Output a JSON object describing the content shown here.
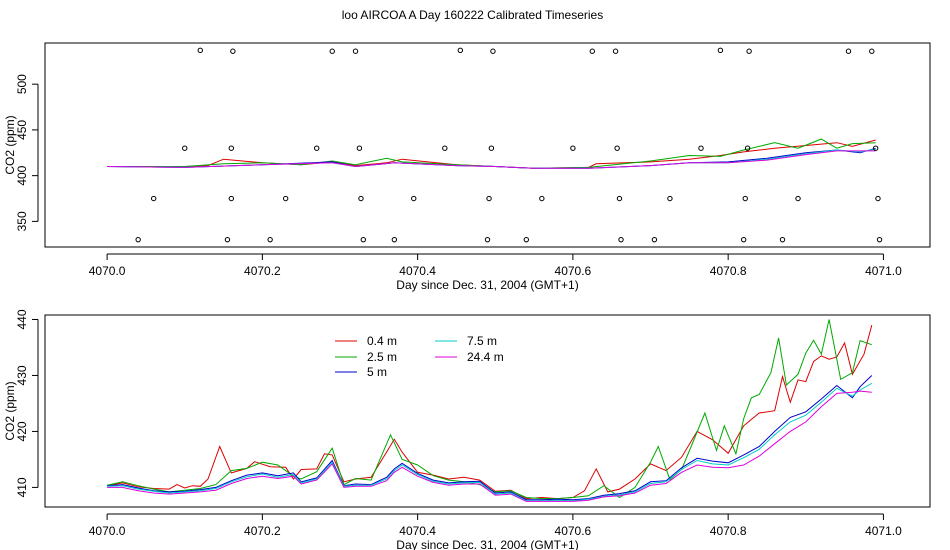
{
  "title": "loo AIRCOA A  Day 160222  Calibrated Timeseries",
  "colors": {
    "0.4 m": "#dd0000",
    "2.5 m": "#00aa00",
    "5 m": "#0000cc",
    "7.5 m": "#00cccc",
    "24.4 m": "#dd00dd"
  },
  "chart_data": [
    {
      "type": "line",
      "xlabel": "Day since Dec. 31, 2004 (GMT+1)",
      "ylabel": "CO2 (ppm)",
      "xlim": [
        4069.92,
        4071.06
      ],
      "ylim": [
        322,
        545
      ],
      "xticks": [
        4070.0,
        4070.2,
        4070.4,
        4070.6,
        4070.8,
        4071.0
      ],
      "xtick_labels": [
        "4070.0",
        "4070.2",
        "4070.4",
        "4070.6",
        "4070.8",
        "4071.0"
      ],
      "yticks": [
        350,
        400,
        450,
        500
      ],
      "ytick_labels": [
        "350",
        "400",
        "450",
        "500"
      ],
      "series": [
        {
          "name": "0.4 m",
          "x": [
            4070.0,
            4070.05,
            4070.1,
            4070.13,
            4070.15,
            4070.2,
            4070.25,
            4070.29,
            4070.32,
            4070.36,
            4070.38,
            4070.45,
            4070.5,
            4070.55,
            4070.62,
            4070.63,
            4070.7,
            4070.75,
            4070.79,
            4070.82,
            4070.86,
            4070.9,
            4070.94,
            4070.96,
            4070.99
          ],
          "y": [
            410,
            410,
            410,
            411,
            418,
            414,
            412,
            415,
            411,
            414,
            418,
            412,
            410,
            408,
            409,
            413,
            415,
            418,
            422,
            426,
            430,
            433,
            436,
            432,
            439
          ]
        },
        {
          "name": "2.5 m",
          "x": [
            4070.0,
            4070.05,
            4070.1,
            4070.15,
            4070.2,
            4070.25,
            4070.29,
            4070.32,
            4070.36,
            4070.38,
            4070.45,
            4070.5,
            4070.55,
            4070.62,
            4070.7,
            4070.75,
            4070.79,
            4070.82,
            4070.86,
            4070.89,
            4070.92,
            4070.94,
            4070.96,
            4070.99
          ],
          "y": [
            410,
            410,
            410,
            413,
            414,
            412,
            416,
            412,
            419,
            415,
            412,
            410,
            408,
            409,
            416,
            422,
            421,
            428,
            436,
            430,
            440,
            430,
            435,
            436
          ]
        },
        {
          "name": "5 m",
          "x": [
            4070.0,
            4070.1,
            4070.2,
            4070.29,
            4070.32,
            4070.37,
            4070.45,
            4070.5,
            4070.55,
            4070.62,
            4070.7,
            4070.75,
            4070.8,
            4070.85,
            4070.9,
            4070.94,
            4070.97,
            4070.99
          ],
          "y": [
            410,
            409,
            412,
            415,
            410,
            414,
            411,
            410,
            408,
            408,
            411,
            414,
            415,
            419,
            425,
            428,
            425,
            430
          ]
        },
        {
          "name": "7.5 m",
          "x": [
            4070.0,
            4070.1,
            4070.2,
            4070.29,
            4070.32,
            4070.37,
            4070.45,
            4070.5,
            4070.55,
            4070.62,
            4070.7,
            4070.75,
            4070.8,
            4070.85,
            4070.9,
            4070.94,
            4070.97,
            4070.99
          ],
          "y": [
            410,
            409,
            412,
            414,
            410,
            414,
            411,
            410,
            408,
            408,
            411,
            414,
            414,
            418,
            424,
            428,
            426,
            429
          ]
        },
        {
          "name": "24.4 m",
          "x": [
            4070.0,
            4070.1,
            4070.2,
            4070.29,
            4070.32,
            4070.37,
            4070.45,
            4070.5,
            4070.55,
            4070.62,
            4070.7,
            4070.75,
            4070.8,
            4070.85,
            4070.9,
            4070.94,
            4070.97,
            4070.99
          ],
          "y": [
            410,
            409,
            412,
            414,
            410,
            414,
            411,
            410,
            408,
            408,
            411,
            414,
            414,
            417,
            423,
            427,
            427,
            427
          ]
        }
      ],
      "markers": {
        "x": [
          4070.04,
          4070.06,
          4070.1,
          4070.12,
          4070.155,
          4070.16,
          4070.16,
          4070.162,
          4070.21,
          4070.23,
          4070.27,
          4070.29,
          4070.32,
          4070.325,
          4070.327,
          4070.33,
          4070.37,
          4070.395,
          4070.435,
          4070.455,
          4070.49,
          4070.492,
          4070.495,
          4070.497,
          4070.54,
          4070.56,
          4070.6,
          4070.625,
          4070.655,
          4070.657,
          4070.66,
          4070.662,
          4070.705,
          4070.725,
          4070.765,
          4070.79,
          4070.82,
          4070.822,
          4070.825,
          4070.827,
          4070.87,
          4070.89,
          4070.955,
          4070.985,
          4070.99,
          4070.993,
          4070.995
        ],
        "y": [
          330,
          375,
          430,
          537,
          330,
          375,
          430,
          536,
          330,
          375,
          430,
          536,
          536,
          430,
          375,
          330,
          330,
          375,
          430,
          537,
          330,
          375,
          430,
          536,
          330,
          375,
          430,
          536,
          536,
          430,
          375,
          330,
          330,
          375,
          430,
          537,
          330,
          375,
          430,
          536,
          330,
          375,
          536,
          536,
          430,
          375,
          330
        ]
      }
    },
    {
      "type": "line",
      "xlabel": "Day since Dec. 31, 2004 (GMT+1)",
      "ylabel": "CO2 (ppm)",
      "xlim": [
        4069.92,
        4071.06
      ],
      "ylim": [
        406.5,
        440.8
      ],
      "xticks": [
        4070.0,
        4070.2,
        4070.4,
        4070.6,
        4070.8,
        4071.0
      ],
      "xtick_labels": [
        "4070.0",
        "4070.2",
        "4070.4",
        "4070.6",
        "4070.8",
        "4071.0"
      ],
      "yticks": [
        410,
        420,
        430,
        440
      ],
      "ytick_labels": [
        "410",
        "420",
        "430",
        "440"
      ],
      "legend": {
        "placement": "top-left",
        "entries": [
          "0.4 m",
          "2.5 m",
          "5 m",
          "7.5 m",
          "24.4 m"
        ]
      },
      "series": [
        {
          "name": "0.4 m",
          "x": [
            4070.0,
            4070.02,
            4070.04,
            4070.06,
            4070.08,
            4070.09,
            4070.1,
            4070.11,
            4070.12,
            4070.13,
            4070.145,
            4070.16,
            4070.18,
            4070.19,
            4070.21,
            4070.23,
            4070.24,
            4070.25,
            4070.27,
            4070.28,
            4070.29,
            4070.305,
            4070.32,
            4070.34,
            4070.36,
            4070.37,
            4070.38,
            4070.4,
            4070.42,
            4070.44,
            4070.46,
            4070.48,
            4070.5,
            4070.52,
            4070.54,
            4070.56,
            4070.58,
            4070.6,
            4070.615,
            4070.63,
            4070.645,
            4070.66,
            4070.68,
            4070.7,
            4070.72,
            4070.74,
            4070.76,
            4070.78,
            4070.8,
            4070.82,
            4070.84,
            4070.86,
            4070.87,
            4070.88,
            4070.89,
            4070.9,
            4070.91,
            4070.92,
            4070.93,
            4070.94,
            4070.95,
            4070.96,
            4070.975,
            4070.985
          ],
          "y": [
            410.3,
            410.8,
            410.1,
            409.8,
            409.7,
            410.5,
            409.9,
            410.3,
            410.2,
            411.5,
            417.3,
            412.6,
            413.4,
            414.6,
            413.7,
            413.6,
            411.5,
            413.2,
            413.3,
            416.0,
            415.8,
            411.0,
            411.5,
            411.8,
            416.3,
            418.6,
            416.3,
            412.7,
            412.2,
            411.5,
            411.8,
            411.3,
            409.3,
            409.5,
            408.0,
            408.2,
            408.0,
            408.2,
            409.4,
            413.3,
            409.2,
            409.7,
            411.5,
            414.2,
            413.0,
            415.4,
            420.0,
            418.5,
            416.1,
            421.0,
            423.3,
            423.7,
            429.8,
            425.2,
            429.2,
            428.9,
            432.5,
            433.5,
            432.9,
            433.3,
            435.8,
            430.2,
            433.8,
            439.0
          ]
        },
        {
          "name": "2.5 m",
          "x": [
            4070.0,
            4070.02,
            4070.04,
            4070.06,
            4070.08,
            4070.1,
            4070.12,
            4070.14,
            4070.16,
            4070.18,
            4070.2,
            4070.22,
            4070.24,
            4070.25,
            4070.27,
            4070.29,
            4070.305,
            4070.32,
            4070.34,
            4070.365,
            4070.38,
            4070.4,
            4070.42,
            4070.44,
            4070.46,
            4070.48,
            4070.5,
            4070.52,
            4070.54,
            4070.56,
            4070.58,
            4070.6,
            4070.62,
            4070.64,
            4070.66,
            4070.68,
            4070.7,
            4070.71,
            4070.725,
            4070.74,
            4070.755,
            4070.77,
            4070.785,
            4070.795,
            4070.81,
            4070.82,
            4070.83,
            4070.84,
            4070.855,
            4070.865,
            4070.875,
            4070.89,
            4070.9,
            4070.91,
            4070.92,
            4070.93,
            4070.945,
            4070.96,
            4070.97,
            4070.985
          ],
          "y": [
            410.4,
            411.0,
            410.3,
            409.7,
            409.2,
            409.5,
            409.8,
            410.5,
            413.0,
            413.4,
            414.5,
            414.0,
            412.0,
            411.5,
            412.8,
            417.0,
            410.5,
            411.6,
            411.3,
            419.4,
            415.0,
            414.0,
            412.1,
            411.3,
            411.0,
            410.5,
            409.2,
            409.4,
            408.2,
            408.0,
            408.0,
            408.2,
            408.5,
            410.3,
            408.2,
            410.0,
            414.5,
            417.3,
            411.4,
            413.2,
            418.2,
            423.3,
            416.6,
            421.0,
            416.0,
            422.3,
            426.0,
            426.6,
            430.5,
            436.7,
            428.3,
            430.2,
            434.0,
            436.3,
            433.8,
            440.0,
            429.3,
            430.5,
            436.2,
            435.5
          ]
        },
        {
          "name": "5 m",
          "x": [
            4070.0,
            4070.02,
            4070.04,
            4070.06,
            4070.08,
            4070.1,
            4070.12,
            4070.14,
            4070.16,
            4070.18,
            4070.2,
            4070.22,
            4070.24,
            4070.25,
            4070.27,
            4070.29,
            4070.305,
            4070.32,
            4070.34,
            4070.36,
            4070.37,
            4070.38,
            4070.4,
            4070.42,
            4070.44,
            4070.46,
            4070.48,
            4070.5,
            4070.52,
            4070.54,
            4070.56,
            4070.58,
            4070.6,
            4070.62,
            4070.64,
            4070.66,
            4070.68,
            4070.7,
            4070.72,
            4070.74,
            4070.76,
            4070.78,
            4070.8,
            4070.82,
            4070.84,
            4070.86,
            4070.88,
            4070.9,
            4070.92,
            4070.94,
            4070.96,
            4070.97,
            4070.985
          ],
          "y": [
            410.3,
            410.5,
            409.9,
            409.4,
            409.2,
            409.3,
            409.6,
            410.0,
            411.2,
            412.2,
            412.6,
            412.1,
            412.6,
            411.0,
            411.7,
            414.8,
            410.3,
            410.6,
            410.5,
            411.8,
            413.3,
            414.3,
            412.5,
            411.3,
            410.8,
            411.0,
            411.1,
            409.0,
            409.2,
            407.8,
            407.8,
            407.9,
            407.8,
            408.0,
            408.6,
            408.9,
            409.4,
            411.0,
            411.2,
            413.5,
            415.2,
            414.7,
            414.4,
            415.8,
            417.3,
            420.0,
            422.5,
            423.5,
            425.8,
            428.2,
            426.0,
            428.0,
            430.0
          ]
        },
        {
          "name": "7.5 m",
          "x": [
            4070.0,
            4070.02,
            4070.04,
            4070.06,
            4070.08,
            4070.1,
            4070.12,
            4070.14,
            4070.16,
            4070.18,
            4070.2,
            4070.22,
            4070.24,
            4070.25,
            4070.27,
            4070.29,
            4070.305,
            4070.32,
            4070.34,
            4070.36,
            4070.37,
            4070.38,
            4070.4,
            4070.42,
            4070.44,
            4070.46,
            4070.48,
            4070.5,
            4070.52,
            4070.54,
            4070.56,
            4070.58,
            4070.6,
            4070.62,
            4070.64,
            4070.66,
            4070.68,
            4070.7,
            4070.72,
            4070.74,
            4070.76,
            4070.78,
            4070.8,
            4070.82,
            4070.84,
            4070.86,
            4070.88,
            4070.9,
            4070.92,
            4070.94,
            4070.96,
            4070.97,
            4070.985
          ],
          "y": [
            410.2,
            410.3,
            409.7,
            409.3,
            409.0,
            409.2,
            409.4,
            409.8,
            411.0,
            411.9,
            412.4,
            411.8,
            412.3,
            410.8,
            411.5,
            414.5,
            410.2,
            410.4,
            410.4,
            411.5,
            413.0,
            414.0,
            412.3,
            411.1,
            410.6,
            410.8,
            410.9,
            408.8,
            409.0,
            407.6,
            407.6,
            407.7,
            407.6,
            407.9,
            408.4,
            408.7,
            409.2,
            410.7,
            411.0,
            413.2,
            414.8,
            414.2,
            414.0,
            415.3,
            416.8,
            419.4,
            421.7,
            422.9,
            425.2,
            427.7,
            426.3,
            427.4,
            428.6
          ]
        },
        {
          "name": "24.4 m",
          "x": [
            4070.0,
            4070.02,
            4070.04,
            4070.06,
            4070.08,
            4070.1,
            4070.12,
            4070.14,
            4070.16,
            4070.18,
            4070.2,
            4070.22,
            4070.24,
            4070.25,
            4070.27,
            4070.29,
            4070.305,
            4070.32,
            4070.34,
            4070.36,
            4070.37,
            4070.38,
            4070.4,
            4070.42,
            4070.44,
            4070.46,
            4070.48,
            4070.5,
            4070.52,
            4070.54,
            4070.56,
            4070.58,
            4070.6,
            4070.62,
            4070.64,
            4070.66,
            4070.68,
            4070.7,
            4070.72,
            4070.74,
            4070.76,
            4070.78,
            4070.8,
            4070.82,
            4070.84,
            4070.86,
            4070.88,
            4070.9,
            4070.92,
            4070.94,
            4070.96,
            4070.97,
            4070.985
          ],
          "y": [
            410.0,
            410.0,
            409.4,
            409.0,
            408.8,
            409.0,
            409.2,
            409.5,
            410.7,
            411.6,
            412.0,
            411.6,
            412.0,
            410.6,
            411.3,
            414.2,
            410.0,
            410.2,
            410.2,
            411.2,
            412.7,
            413.6,
            412.0,
            410.9,
            410.4,
            410.6,
            410.6,
            408.6,
            408.8,
            407.5,
            407.5,
            407.5,
            407.5,
            407.7,
            408.3,
            408.5,
            409.0,
            410.4,
            410.7,
            412.7,
            414.0,
            413.6,
            413.5,
            414.0,
            415.6,
            417.8,
            420.0,
            421.7,
            424.4,
            426.8,
            427.0,
            427.2,
            427.0
          ]
        }
      ]
    }
  ]
}
